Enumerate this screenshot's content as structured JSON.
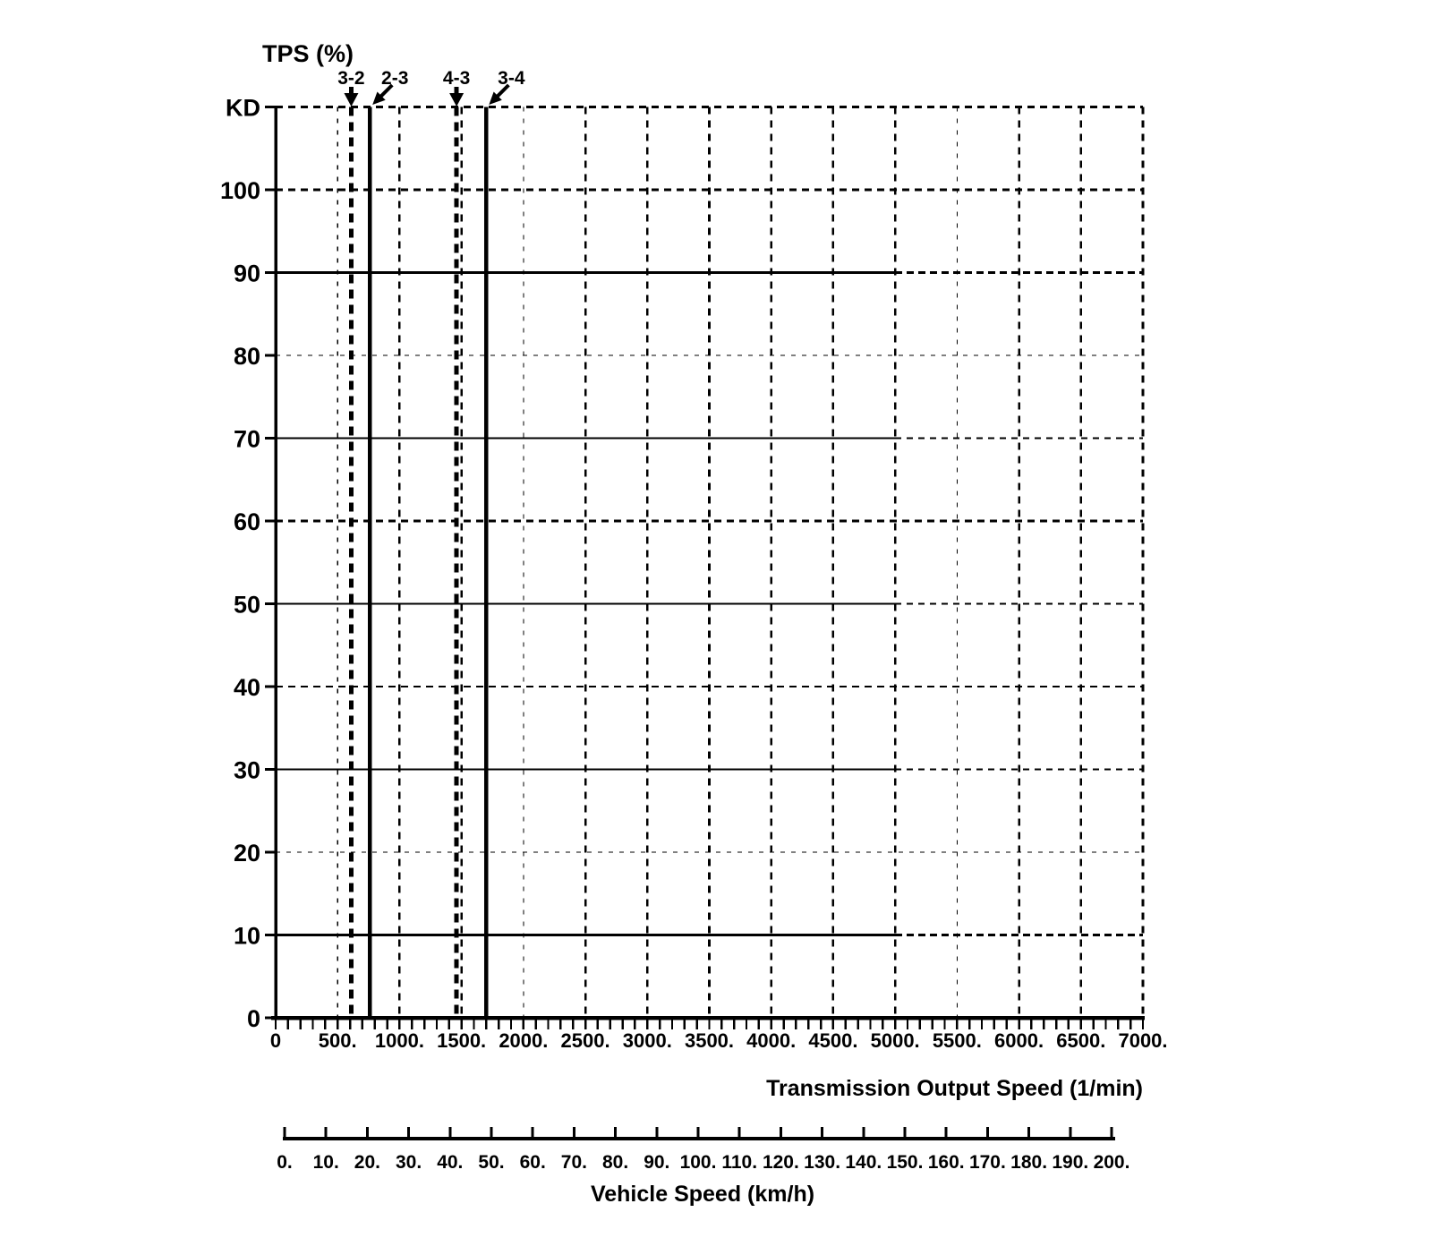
{
  "page": {
    "background_color": "#ffffff",
    "ink_color": "#000000"
  },
  "chart_data": {
    "type": "line",
    "title": "TPS (%)",
    "y_axis": {
      "title": "TPS (%)",
      "min": 0,
      "max": 110,
      "tick_values": [
        110,
        100,
        90,
        80,
        70,
        60,
        50,
        40,
        30,
        20,
        10,
        0
      ],
      "tick_labels": [
        "KD",
        "100",
        "90",
        "80",
        "70",
        "60",
        "50",
        "40",
        "30",
        "20",
        "10",
        "0"
      ],
      "kickdown_label": "KD"
    },
    "x_axis": {
      "title": "Transmission Output Speed (1/min)",
      "min": 0,
      "max": 7000,
      "major_tick_step": 500,
      "minor_tick_step": 100,
      "tick_labels": [
        "0",
        "500.",
        "1000.",
        "1500.",
        "2000.",
        "2500.",
        "3000.",
        "3500.",
        "4000.",
        "4500.",
        "5000.",
        "5500.",
        "6000.",
        "6500.",
        "7000."
      ]
    },
    "x_axis_secondary": {
      "title": "Vehicle Speed (km/h)",
      "min": 0,
      "max": 200,
      "tick_step": 10,
      "tick_labels": [
        "0.",
        "10.",
        "20.",
        "30.",
        "40.",
        "50.",
        "60.",
        "70.",
        "80.",
        "90.",
        "100.",
        "110.",
        "120.",
        "130.",
        "140.",
        "150.",
        "160.",
        "170.",
        "180.",
        "190.",
        "200."
      ]
    },
    "horizontal_gridlines": [
      {
        "tps": 110,
        "style": "dashed",
        "weight": "bold"
      },
      {
        "tps": 100,
        "style": "dashed",
        "weight": "bold"
      },
      {
        "tps": 90,
        "style": "solid_then_dashed",
        "solid_until": 5000,
        "weight": "bold"
      },
      {
        "tps": 80,
        "style": "dashed",
        "weight": "thin"
      },
      {
        "tps": 70,
        "style": "solid_then_dashed",
        "solid_until": 5000,
        "weight": "medium"
      },
      {
        "tps": 60,
        "style": "dashed",
        "weight": "bold"
      },
      {
        "tps": 50,
        "style": "solid_then_dashed",
        "solid_until": 5000,
        "weight": "medium"
      },
      {
        "tps": 40,
        "style": "dashed",
        "weight": "medium"
      },
      {
        "tps": 30,
        "style": "solid_then_dashed",
        "solid_until": 5000,
        "weight": "medium"
      },
      {
        "tps": 20,
        "style": "dashed",
        "weight": "thin"
      },
      {
        "tps": 10,
        "style": "solid_then_dashed",
        "solid_until": 5000,
        "weight": "bold"
      }
    ],
    "vertical_gridlines": [
      {
        "speed": 500,
        "weight": "thin"
      },
      {
        "speed": 1000,
        "weight": "bold"
      },
      {
        "speed": 1500,
        "weight": "bold"
      },
      {
        "speed": 2000,
        "weight": "thin"
      },
      {
        "speed": 2500,
        "weight": "bold"
      },
      {
        "speed": 3000,
        "weight": "bold"
      },
      {
        "speed": 3500,
        "weight": "bold"
      },
      {
        "speed": 4000,
        "weight": "bold"
      },
      {
        "speed": 4500,
        "weight": "bold"
      },
      {
        "speed": 5000,
        "weight": "bold"
      },
      {
        "speed": 5500,
        "weight": "thin"
      },
      {
        "speed": 6000,
        "weight": "bold"
      },
      {
        "speed": 6500,
        "weight": "bold"
      },
      {
        "speed": 7000,
        "weight": "bold"
      }
    ],
    "shift_lines": [
      {
        "label": "3-2",
        "speed": 610,
        "line": "dashed",
        "arrow": "down"
      },
      {
        "label": "2-3",
        "speed": 760,
        "line": "solid",
        "arrow": "down-left"
      },
      {
        "label": "4-3",
        "speed": 1460,
        "line": "dashed",
        "arrow": "down"
      },
      {
        "label": "3-4",
        "speed": 1700,
        "line": "solid",
        "arrow": "down-left"
      }
    ]
  }
}
